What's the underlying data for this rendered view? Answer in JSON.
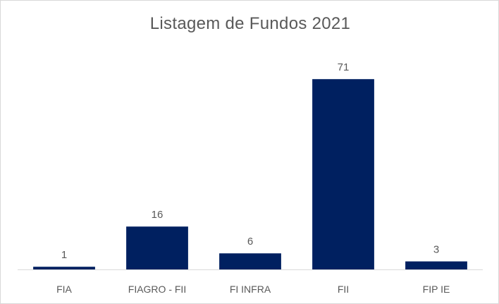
{
  "chart_data": {
    "type": "bar",
    "title": "Listagem de Fundos 2021",
    "categories": [
      "FIA",
      "FIAGRO - FII",
      "FI INFRA",
      "FII",
      "FIP IE"
    ],
    "values": [
      1,
      16,
      6,
      71,
      3
    ],
    "xlabel": "",
    "ylabel": "",
    "ylim": [
      0,
      80
    ],
    "grid": false,
    "legend": "none",
    "data_labels": true,
    "bar_color": "#002060",
    "axis_color": "#d9d9d9",
    "text_color": "#595959"
  }
}
